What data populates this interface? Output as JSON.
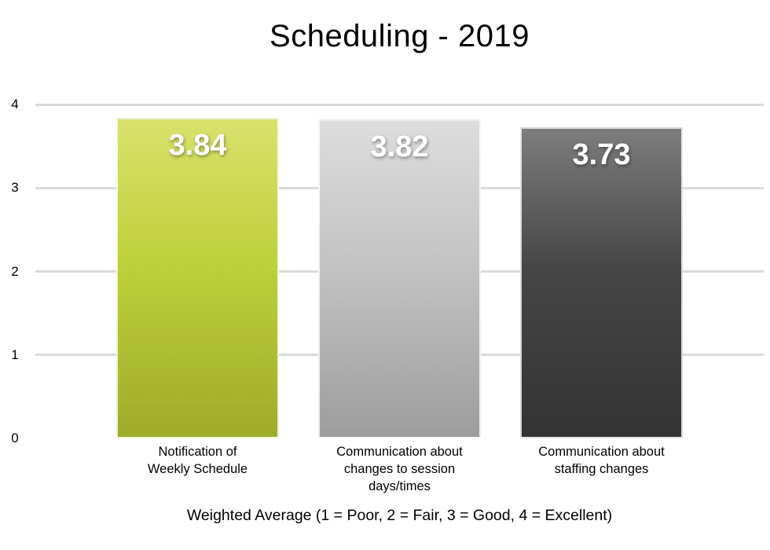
{
  "title": "Scheduling - 2019",
  "axis_caption": "Weighted Average (1 = Poor, 2 = Fair, 3 = Good, 4 = Excellent)",
  "chart_data": {
    "type": "bar",
    "title": "Scheduling - 2019",
    "xlabel": "Weighted Average (1 = Poor, 2 = Fair, 3 = Good, 4 = Excellent)",
    "ylabel": "",
    "categories": [
      "Notification of\nWeekly Schedule",
      "Communication about\nchanges to session\ndays/times",
      "Communication about\nstaffing changes"
    ],
    "values": [
      3.84,
      3.82,
      3.73
    ],
    "value_labels": [
      "3.84",
      "3.82",
      "3.73"
    ],
    "ylim": [
      0,
      4
    ],
    "yticks": [
      0,
      1,
      2,
      3,
      4
    ],
    "grid": true,
    "legend": false,
    "gridline_color": "#d9d9d9",
    "value_label_color": "#ffffff",
    "bar_gradients": [
      {
        "top": "#d8e26c",
        "mid": "#bdd13a",
        "bottom": "#9dac29"
      },
      {
        "top": "#dddddd",
        "mid": "#c3c3c3",
        "bottom": "#9d9d9d"
      },
      {
        "top": "#7d7d7d",
        "mid": "#464646",
        "bottom": "#333333"
      }
    ]
  }
}
